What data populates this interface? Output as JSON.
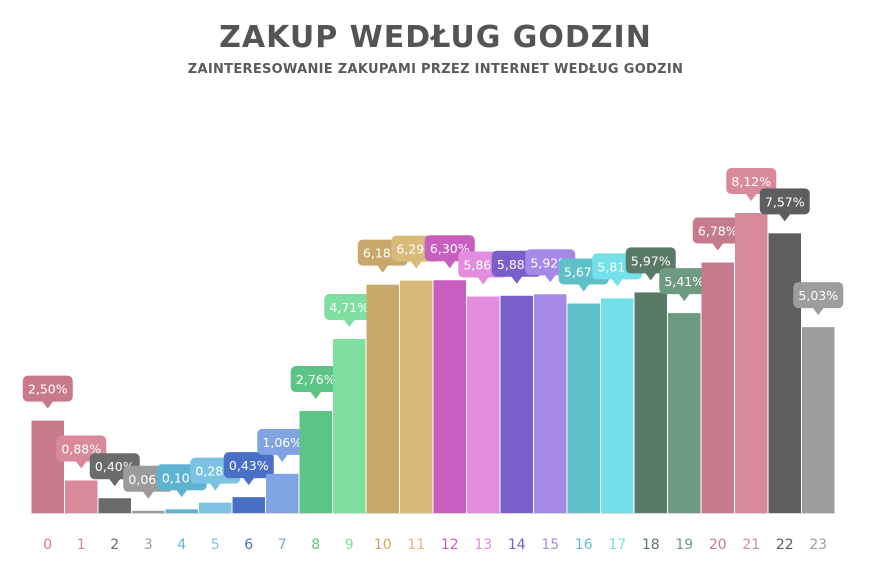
{
  "chart_data": {
    "type": "bar",
    "title": "ZAKUP WEDŁUG GODZIN",
    "subtitle": "ZAINTERESOWANIE ZAKUPAMI PRZEZ INTERNET WEDŁUG GODZIN",
    "categories": [
      "0",
      "1",
      "2",
      "3",
      "4",
      "5",
      "6",
      "7",
      "8",
      "9",
      "10",
      "11",
      "12",
      "13",
      "14",
      "15",
      "16",
      "17",
      "18",
      "19",
      "20",
      "21",
      "22",
      "23"
    ],
    "values": [
      2.5,
      0.88,
      0.4,
      0.06,
      0.1,
      0.28,
      0.43,
      1.06,
      2.76,
      4.71,
      6.18,
      6.29,
      6.3,
      5.86,
      5.88,
      5.92,
      5.67,
      5.81,
      5.97,
      5.41,
      6.78,
      8.12,
      7.57,
      5.03
    ],
    "value_labels": [
      "2,50%",
      "0,88%",
      "0,40%",
      "0,06%",
      "0,10%",
      "0,28%",
      "0,43%",
      "1,06%",
      "2,76%",
      "4,71%",
      "6,18%",
      "6,29%",
      "6,30%",
      "5,86%",
      "5,88%",
      "5,92%",
      "5,67%",
      "5,81%",
      "5,97%",
      "5,41%",
      "6,78%",
      "8,12%",
      "7,57%",
      "5,03%"
    ],
    "label_positions": [
      "above",
      "above",
      "above",
      "above",
      "above",
      "above",
      "above",
      "above",
      "above",
      "above",
      "above",
      "above",
      "above",
      "above",
      "above",
      "above",
      "above",
      "above",
      "above",
      "above",
      "above",
      "above",
      "above",
      "above"
    ],
    "ylim": [
      0,
      8.12
    ],
    "grid": false,
    "colors": [
      "#c97a8a",
      "#d98a9a",
      "#6b6b6b",
      "#9b9b9b",
      "#5eb3d3",
      "#7cc3e3",
      "#4a6fc6",
      "#7fa3e3",
      "#5cc585",
      "#7edfa0",
      "#c9a76a",
      "#d8ba7b",
      "#c85ec0",
      "#e48ce0",
      "#7a5ec9",
      "#a688e8",
      "#5ec0c8",
      "#74e0ea",
      "#5a7a68",
      "#6e9a80",
      "#c57b8c",
      "#d98a9a",
      "#5d5e60",
      "#9d9d9d"
    ]
  }
}
